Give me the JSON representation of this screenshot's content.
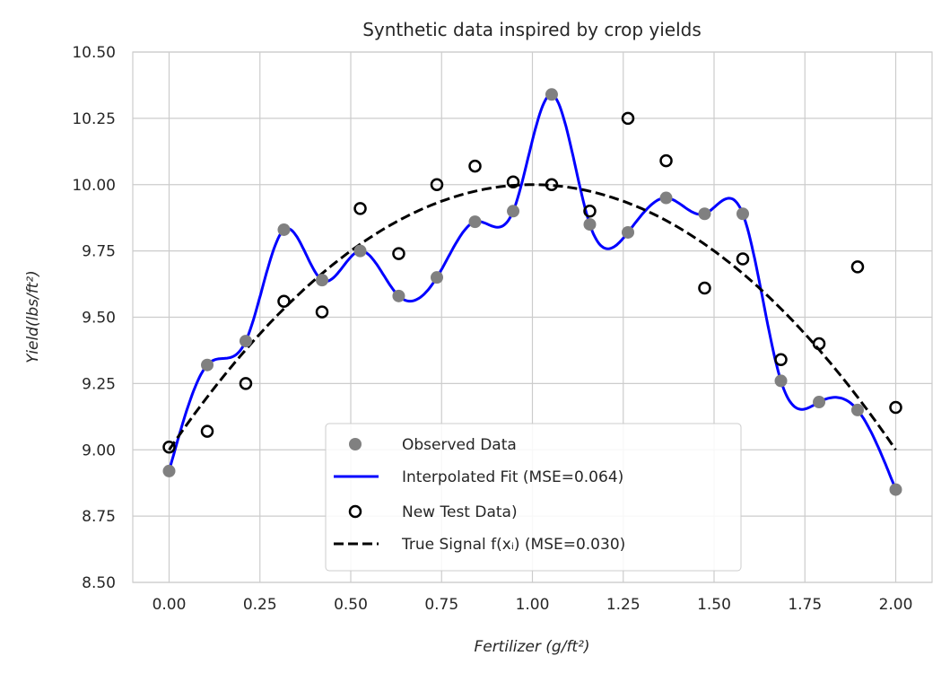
{
  "chart_data": {
    "type": "scatter",
    "title": "Synthetic data inspired by crop yields",
    "xlabel": "Fertilizer (g/ft²)",
    "ylabel": "Yield(lbs/ft²)",
    "xlim": [
      -0.1,
      2.1
    ],
    "ylim": [
      8.5,
      10.5
    ],
    "grid": true,
    "legend_placement": "lower-center",
    "x_ticks": [
      "0.00",
      "0.25",
      "0.50",
      "0.75",
      "1.00",
      "1.25",
      "1.50",
      "1.75",
      "2.00"
    ],
    "y_ticks": [
      "8.50",
      "8.75",
      "9.00",
      "9.25",
      "9.50",
      "9.75",
      "10.00",
      "10.25",
      "10.50"
    ],
    "x": [
      0.0,
      0.105,
      0.211,
      0.316,
      0.421,
      0.526,
      0.632,
      0.737,
      0.842,
      0.947,
      1.053,
      1.158,
      1.263,
      1.368,
      1.474,
      1.579,
      1.684,
      1.789,
      1.895,
      2.0
    ],
    "series": [
      {
        "name": "Observed Data",
        "kind": "scatter",
        "color": "#808080",
        "values": [
          8.92,
          9.32,
          9.41,
          9.83,
          9.64,
          9.75,
          9.58,
          9.65,
          9.86,
          9.9,
          10.34,
          9.85,
          9.82,
          9.95,
          9.89,
          9.89,
          9.26,
          9.18,
          9.15,
          8.85
        ]
      },
      {
        "name": "Interpolated Fit (MSE=0.064)",
        "kind": "line",
        "color": "#0000ff",
        "interpolation": "cubic spline through Observed Data"
      },
      {
        "name": "New Test Data)",
        "kind": "hollow-scatter",
        "color": "#000000",
        "values": [
          9.01,
          9.07,
          9.25,
          9.56,
          9.52,
          9.91,
          9.74,
          10.0,
          10.07,
          10.01,
          10.0,
          9.9,
          10.25,
          10.09,
          9.61,
          9.72,
          9.34,
          9.4,
          9.69,
          9.16
        ]
      },
      {
        "name": "True Signal f(xᵢ)  (MSE=0.030)",
        "kind": "dashed-line",
        "color": "#000000",
        "function": "10 - (x-1)^2"
      }
    ]
  }
}
